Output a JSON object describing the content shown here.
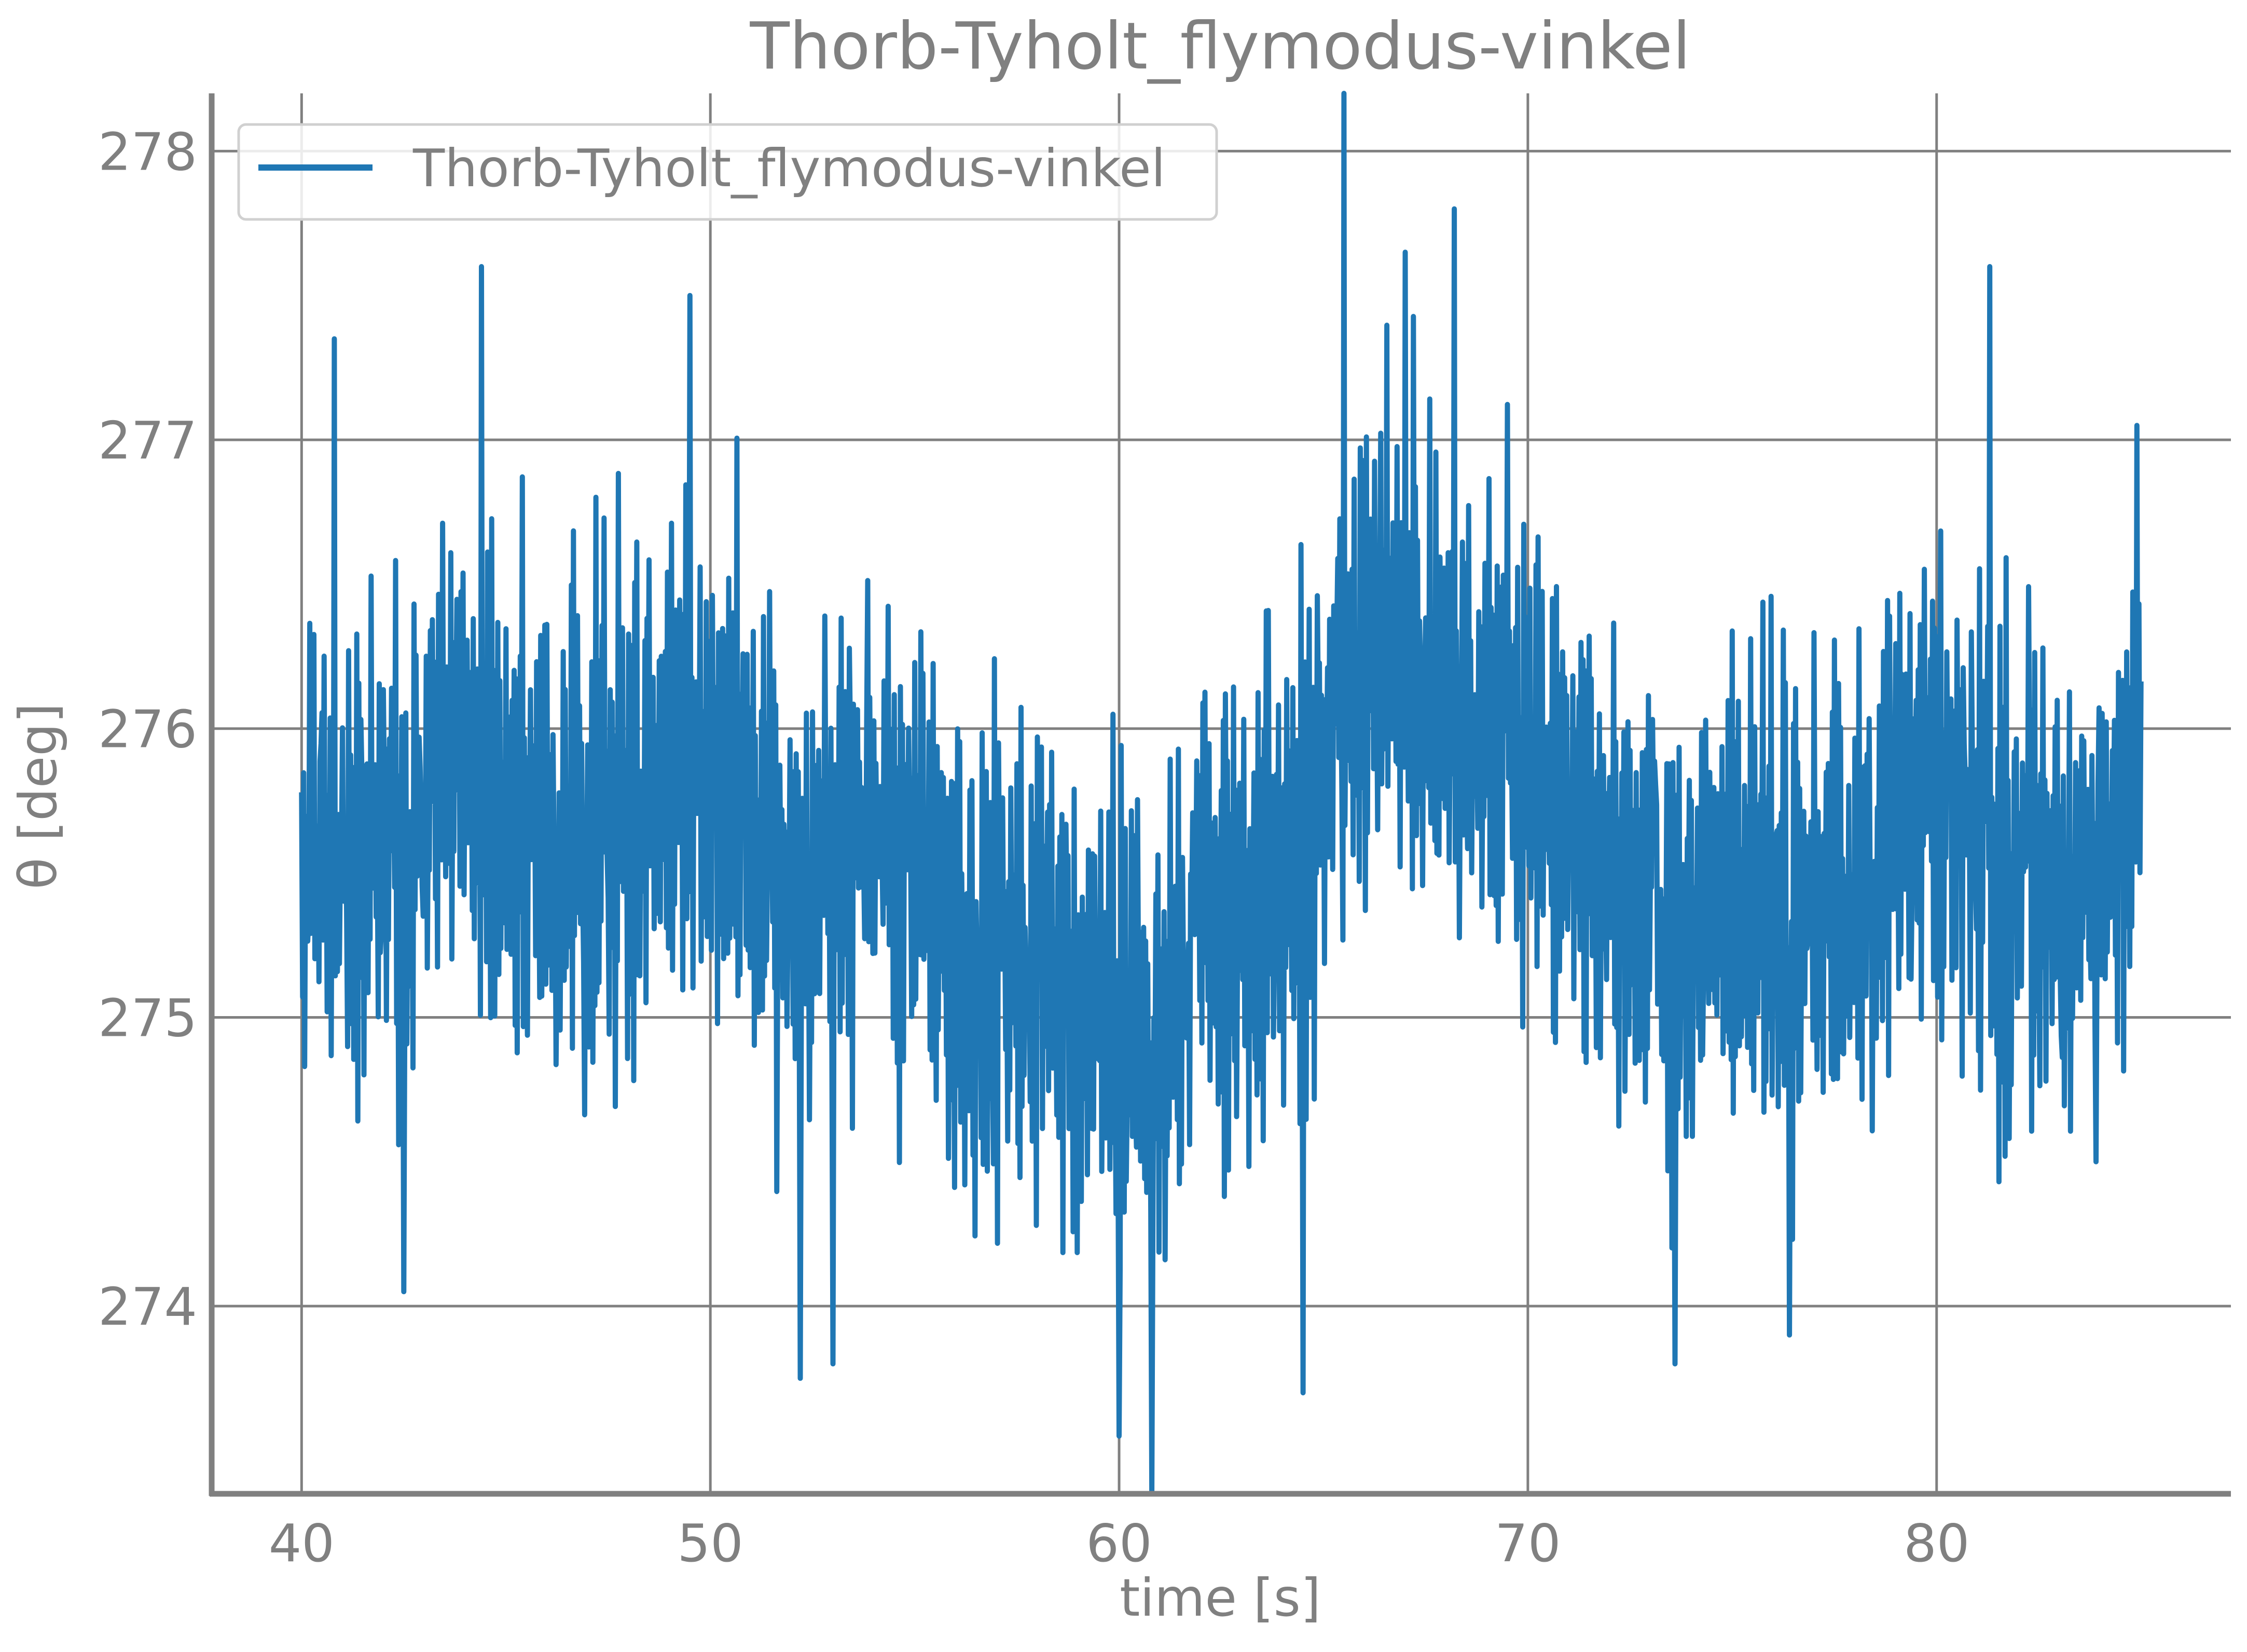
{
  "chart_data": {
    "type": "line",
    "title": "Thorb-Tyholt_flymodus-vinkel",
    "xlabel": "time [s]",
    "ylabel": "θ [deg]",
    "xlim": [
      37.8,
      87.2
    ],
    "ylim": [
      273.35,
      278.2
    ],
    "x_ticks": [
      40,
      50,
      60,
      70,
      80
    ],
    "y_ticks": [
      274,
      275,
      276,
      277,
      278
    ],
    "x_tick_labels": [
      "40",
      "50",
      "60",
      "70",
      "80"
    ],
    "y_tick_labels": [
      "274",
      "275",
      "276",
      "277",
      "278"
    ],
    "grid": true,
    "legend_position": "upper-left",
    "series": [
      {
        "name": "Thorb-Tyholt_flymodus-vinkel",
        "color": "#1f77b4",
        "x_range": [
          40,
          85
        ],
        "sample_spacing": 0.025,
        "trend": [
          [
            40,
            275.6
          ],
          [
            42,
            275.5
          ],
          [
            44,
            275.9
          ],
          [
            46,
            275.55
          ],
          [
            48,
            275.75
          ],
          [
            50,
            275.9
          ],
          [
            52,
            275.4
          ],
          [
            54,
            275.7
          ],
          [
            56,
            275.1
          ],
          [
            58,
            275.3
          ],
          [
            60,
            274.9
          ],
          [
            61,
            274.75
          ],
          [
            62,
            275.4
          ],
          [
            64,
            275.45
          ],
          [
            65,
            275.9
          ],
          [
            66,
            276.3
          ],
          [
            68,
            276.2
          ],
          [
            70,
            275.8
          ],
          [
            72,
            275.6
          ],
          [
            74,
            275.3
          ],
          [
            76,
            275.4
          ],
          [
            78,
            275.45
          ],
          [
            80,
            275.8
          ],
          [
            82,
            275.5
          ],
          [
            84,
            275.4
          ],
          [
            85,
            275.9
          ]
        ],
        "peaks": [
          [
            40.8,
            277.35
          ],
          [
            44.4,
            277.6
          ],
          [
            49.5,
            277.5
          ],
          [
            65.5,
            278.2
          ],
          [
            67.0,
            277.65
          ],
          [
            68.2,
            277.8
          ],
          [
            81.3,
            277.6
          ],
          [
            84.9,
            277.05
          ]
        ],
        "troughs": [
          [
            42.5,
            274.05
          ],
          [
            52.2,
            273.75
          ],
          [
            53.0,
            273.8
          ],
          [
            60.0,
            273.55
          ],
          [
            60.8,
            273.35
          ],
          [
            64.5,
            273.7
          ],
          [
            73.6,
            273.8
          ],
          [
            76.4,
            273.9
          ],
          [
            83.9,
            274.5
          ]
        ]
      }
    ]
  }
}
